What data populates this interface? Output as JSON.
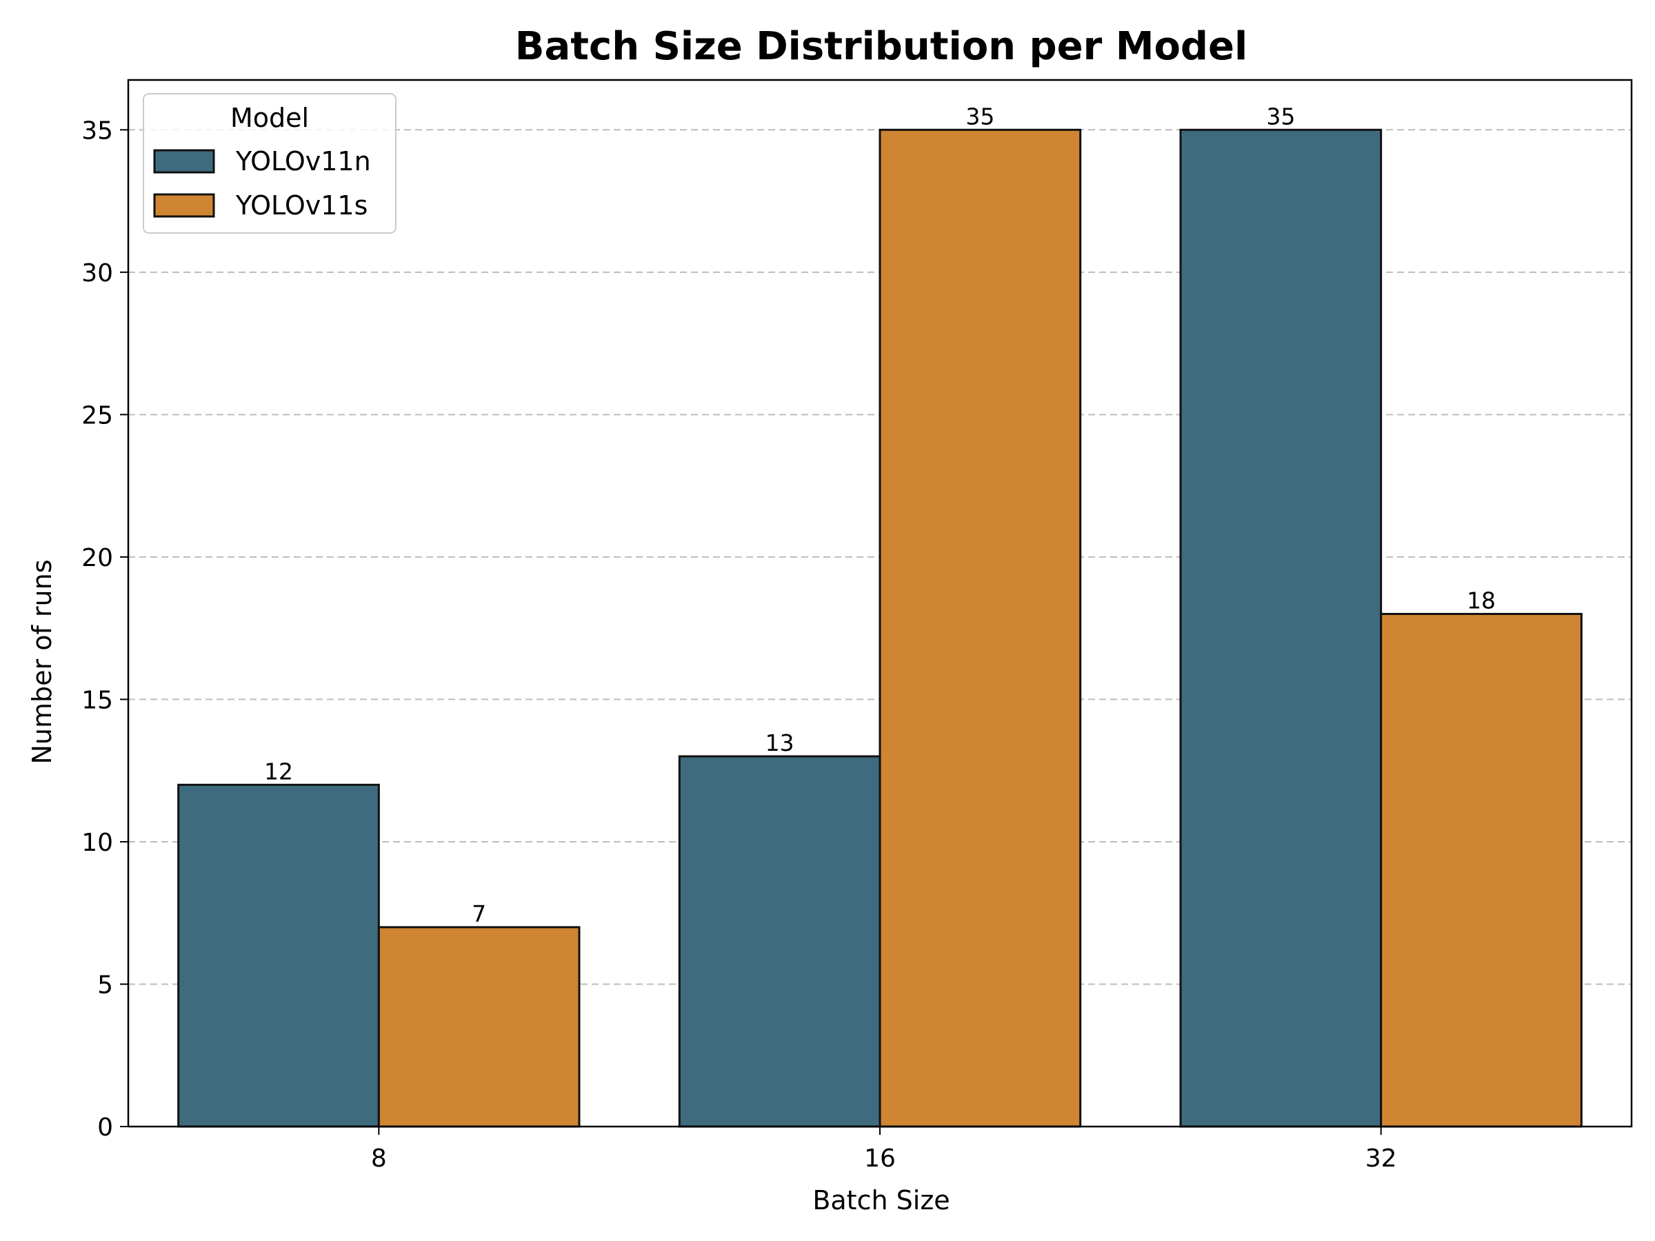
{
  "chart_data": {
    "type": "bar",
    "title": "Batch Size Distribution per Model",
    "xlabel": "Batch Size",
    "ylabel": "Number of runs",
    "categories": [
      "8",
      "16",
      "32"
    ],
    "series": [
      {
        "name": "YOLOv11n",
        "values": [
          12,
          13,
          35
        ],
        "color": "#3f6b7e"
      },
      {
        "name": "YOLOv11s",
        "values": [
          7,
          35,
          18
        ],
        "color": "#cf8532"
      }
    ],
    "ylim": [
      0,
      36.75
    ],
    "yticks": [
      0,
      5,
      10,
      15,
      20,
      25,
      30,
      35
    ],
    "grid": "y-dashed",
    "legend": {
      "title": "Model",
      "placement": "top-left"
    }
  }
}
